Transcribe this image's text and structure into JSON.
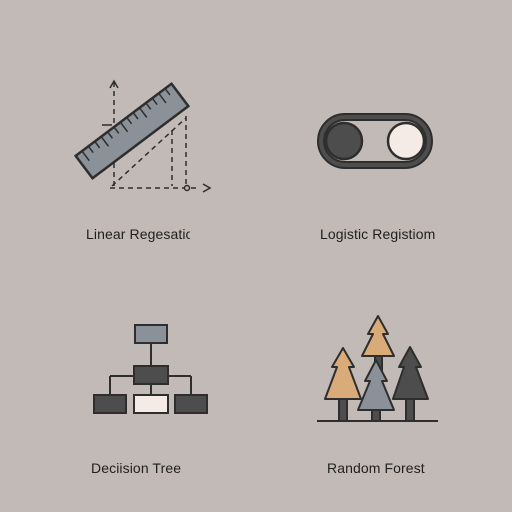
{
  "items": [
    {
      "label": "Linear Regesatio",
      "icon": "ruler-graph-icon"
    },
    {
      "label": "Logistic Registiom",
      "icon": "toggle-switch-icon"
    },
    {
      "label": "Deciision Tree",
      "icon": "hierarchy-tree-icon"
    },
    {
      "label": "Random Forest",
      "icon": "pine-forest-icon"
    }
  ],
  "colors": {
    "background": "#c2bab6",
    "outline": "#2e2e2e",
    "dark_fill": "#4d4d4d",
    "gray_fill": "#8a9199",
    "light_fill": "#f4ebe6",
    "tan_fill": "#d9ab78"
  }
}
